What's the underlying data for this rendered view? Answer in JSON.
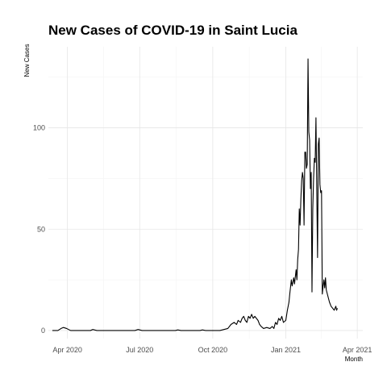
{
  "chart_data": {
    "type": "line",
    "title": "New Cases of COVID-19 in Saint Lucia",
    "xlabel": "Month",
    "ylabel": "New Cases",
    "x_ticks": [
      "2020-04-01",
      "2020-07-01",
      "2020-10-01",
      "2021-01-01",
      "2021-04-01"
    ],
    "x_tick_labels": [
      "Apr 2020",
      "Jul 2020",
      "Oct 2020",
      "Jan 2021",
      "Apr 2021"
    ],
    "y_ticks": [
      0,
      50,
      100
    ],
    "y_tick_labels": [
      "0",
      "50",
      "100"
    ],
    "xlim": [
      "2020-03-08",
      "2021-04-08"
    ],
    "ylim": [
      -4,
      140
    ],
    "grid": true,
    "legend": "none",
    "series": [
      {
        "color": "#000000",
        "points": [
          [
            "2020-03-13",
            0
          ],
          [
            "2020-03-20",
            0
          ],
          [
            "2020-03-24",
            1
          ],
          [
            "2020-03-27",
            1.5
          ],
          [
            "2020-03-31",
            1
          ],
          [
            "2020-04-05",
            0
          ],
          [
            "2020-04-30",
            0
          ],
          [
            "2020-05-03",
            0.5
          ],
          [
            "2020-05-08",
            0
          ],
          [
            "2020-06-25",
            0
          ],
          [
            "2020-06-29",
            0.5
          ],
          [
            "2020-07-04",
            0
          ],
          [
            "2020-08-15",
            0
          ],
          [
            "2020-08-18",
            0.3
          ],
          [
            "2020-08-22",
            0
          ],
          [
            "2020-09-15",
            0
          ],
          [
            "2020-09-18",
            0.3
          ],
          [
            "2020-09-22",
            0
          ],
          [
            "2020-10-10",
            0
          ],
          [
            "2020-10-15",
            0.5
          ],
          [
            "2020-10-20",
            1
          ],
          [
            "2020-10-24",
            3
          ],
          [
            "2020-10-28",
            4
          ],
          [
            "2020-10-31",
            3
          ],
          [
            "2020-11-02",
            5
          ],
          [
            "2020-11-05",
            4
          ],
          [
            "2020-11-07",
            6
          ],
          [
            "2020-11-09",
            7
          ],
          [
            "2020-11-11",
            5
          ],
          [
            "2020-11-13",
            4
          ],
          [
            "2020-11-15",
            7
          ],
          [
            "2020-11-17",
            6
          ],
          [
            "2020-11-19",
            8
          ],
          [
            "2020-11-21",
            6
          ],
          [
            "2020-11-23",
            7
          ],
          [
            "2020-11-25",
            6
          ],
          [
            "2020-11-27",
            5
          ],
          [
            "2020-11-29",
            3
          ],
          [
            "2020-12-01",
            2
          ],
          [
            "2020-12-04",
            1
          ],
          [
            "2020-12-08",
            1.5
          ],
          [
            "2020-12-12",
            1
          ],
          [
            "2020-12-15",
            2
          ],
          [
            "2020-12-17",
            1
          ],
          [
            "2020-12-19",
            4
          ],
          [
            "2020-12-21",
            3
          ],
          [
            "2020-12-23",
            6
          ],
          [
            "2020-12-25",
            5
          ],
          [
            "2020-12-27",
            7
          ],
          [
            "2020-12-29",
            4
          ],
          [
            "2021-01-01",
            5
          ],
          [
            "2021-01-03",
            10
          ],
          [
            "2021-01-05",
            14
          ],
          [
            "2021-01-06",
            18
          ],
          [
            "2021-01-08",
            25
          ],
          [
            "2021-01-09",
            22
          ],
          [
            "2021-01-11",
            26
          ],
          [
            "2021-01-12",
            23
          ],
          [
            "2021-01-14",
            30
          ],
          [
            "2021-01-15",
            25
          ],
          [
            "2021-01-16",
            35
          ],
          [
            "2021-01-17",
            40
          ],
          [
            "2021-01-18",
            60
          ],
          [
            "2021-01-19",
            52
          ],
          [
            "2021-01-20",
            65
          ],
          [
            "2021-01-21",
            74
          ],
          [
            "2021-01-22",
            78
          ],
          [
            "2021-01-23",
            75
          ],
          [
            "2021-01-24",
            52
          ],
          [
            "2021-01-25",
            88
          ],
          [
            "2021-01-26",
            88
          ],
          [
            "2021-01-27",
            80
          ],
          [
            "2021-01-28",
            82
          ],
          [
            "2021-01-29",
            134
          ],
          [
            "2021-01-30",
            98
          ],
          [
            "2021-01-31",
            94
          ],
          [
            "2021-02-01",
            70
          ],
          [
            "2021-02-02",
            78
          ],
          [
            "2021-02-03",
            19
          ],
          [
            "2021-02-04",
            60
          ],
          [
            "2021-02-05",
            75
          ],
          [
            "2021-02-06",
            85
          ],
          [
            "2021-02-07",
            83
          ],
          [
            "2021-02-08",
            105
          ],
          [
            "2021-02-09",
            70
          ],
          [
            "2021-02-10",
            36
          ],
          [
            "2021-02-11",
            92
          ],
          [
            "2021-02-12",
            95
          ],
          [
            "2021-02-13",
            72
          ],
          [
            "2021-02-14",
            68
          ],
          [
            "2021-02-15",
            69
          ],
          [
            "2021-02-16",
            18
          ],
          [
            "2021-02-17",
            22
          ],
          [
            "2021-02-18",
            25
          ],
          [
            "2021-02-19",
            21
          ],
          [
            "2021-02-20",
            26
          ],
          [
            "2021-02-21",
            20
          ],
          [
            "2021-02-23",
            17
          ],
          [
            "2021-02-25",
            14
          ],
          [
            "2021-02-27",
            12
          ],
          [
            "2021-03-01",
            11
          ],
          [
            "2021-03-03",
            10
          ],
          [
            "2021-03-05",
            12
          ],
          [
            "2021-03-06",
            10
          ],
          [
            "2021-03-07",
            11
          ]
        ]
      }
    ]
  }
}
